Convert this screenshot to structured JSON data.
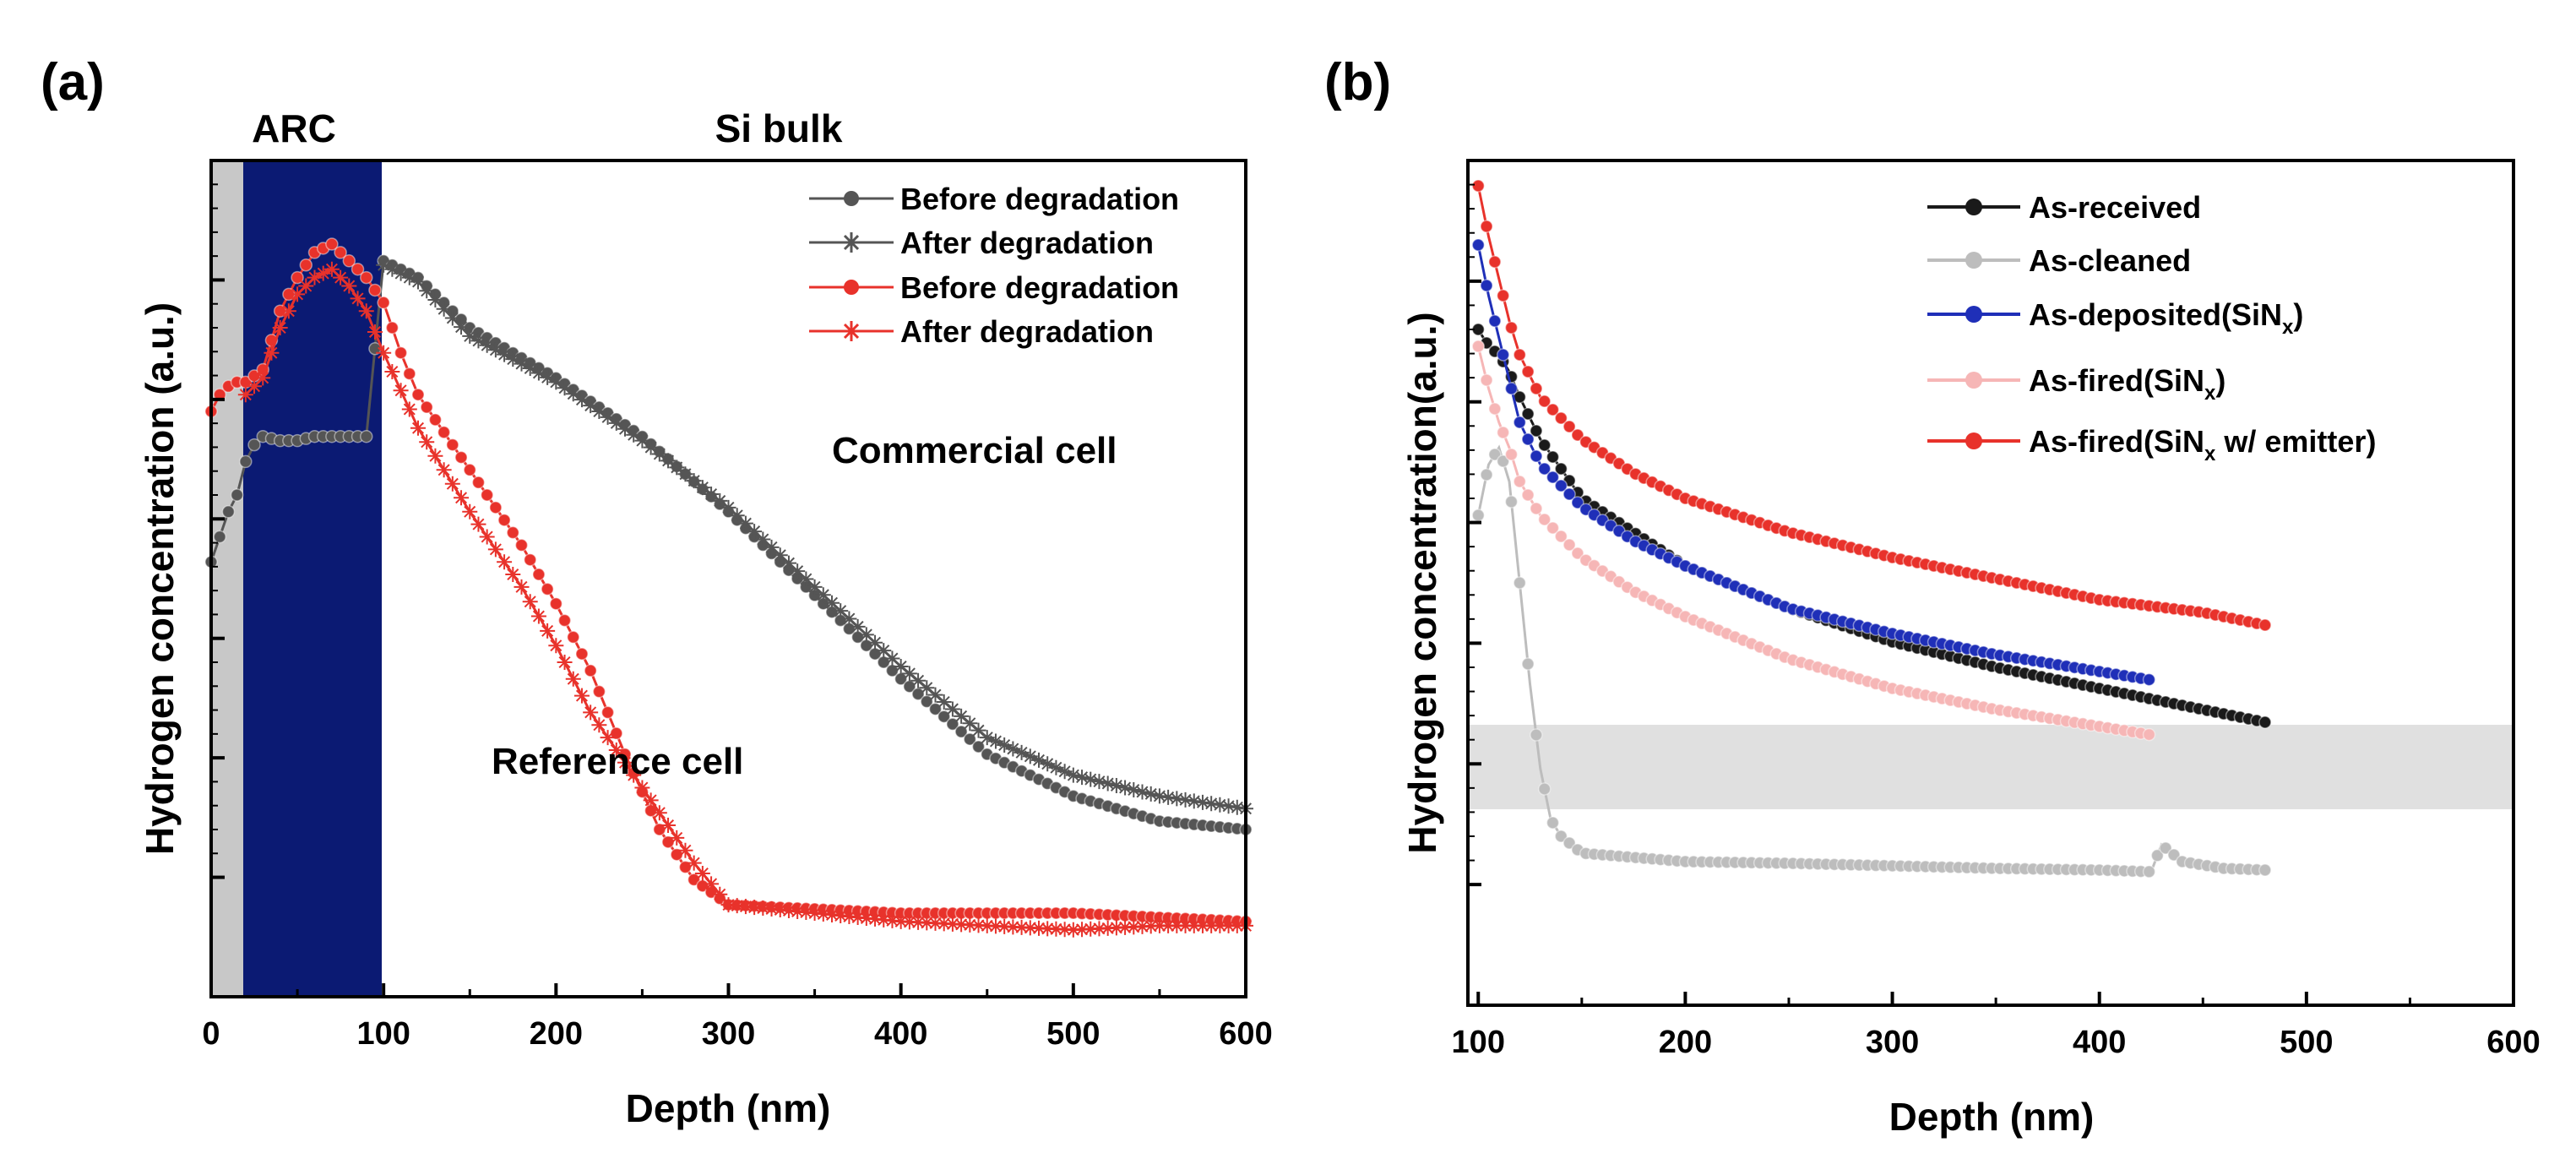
{
  "figure": {
    "panel_a_label": "(a)",
    "panel_b_label": "(b)"
  },
  "colors": {
    "black_series": "#1a1a1a",
    "dark_grey_series": "#555555",
    "red_series": "#e8322b",
    "blue_series": "#1f2fb8",
    "light_grey_series": "#bdbdbd",
    "pink_series": "#f6b6b6",
    "arc_band": "#0b1a73",
    "grey_band": "#c8c8c8",
    "shaded_region": "#e0e0e0"
  },
  "chart_data": [
    {
      "panel": "a",
      "type": "line",
      "title": "",
      "xlabel": "Depth (nm)",
      "ylabel": "Hydrogen concentration (a.u.)",
      "xlim": [
        0,
        600
      ],
      "ylim": [
        0,
        1
      ],
      "x_ticks": [
        0,
        100,
        200,
        300,
        400,
        500,
        600
      ],
      "grid": false,
      "legend_position": "top-right",
      "region_labels": [
        "ARC",
        "Si bulk"
      ],
      "annotations": [
        "Commercial cell",
        "Reference cell"
      ],
      "series": [
        {
          "name": "Before degradation",
          "group": "Commercial cell",
          "marker": "circle",
          "color": "#555555",
          "x": [
            0,
            5,
            10,
            15,
            20,
            25,
            30,
            40,
            50,
            60,
            70,
            80,
            90,
            100,
            110,
            120,
            150,
            200,
            250,
            300,
            350,
            400,
            450,
            500,
            550,
            600
          ],
          "y": [
            0.52,
            0.55,
            0.58,
            0.6,
            0.64,
            0.66,
            0.67,
            0.665,
            0.665,
            0.67,
            0.67,
            0.67,
            0.67,
            0.88,
            0.87,
            0.86,
            0.8,
            0.74,
            0.67,
            0.58,
            0.48,
            0.38,
            0.29,
            0.24,
            0.21,
            0.2
          ]
        },
        {
          "name": "After degradation",
          "group": "Commercial cell",
          "marker": "star",
          "color": "#555555",
          "x": [
            100,
            120,
            150,
            200,
            250,
            300,
            350,
            400,
            450,
            500,
            550,
            600
          ],
          "y": [
            0.875,
            0.855,
            0.79,
            0.735,
            0.665,
            0.585,
            0.49,
            0.395,
            0.31,
            0.265,
            0.24,
            0.225
          ]
        },
        {
          "name": "Before degradation",
          "group": "Reference cell",
          "marker": "circle",
          "color": "#e8322b",
          "x": [
            0,
            5,
            10,
            15,
            20,
            30,
            40,
            50,
            60,
            70,
            80,
            90,
            100,
            110,
            120,
            140,
            160,
            180,
            200,
            220,
            240,
            260,
            280,
            300,
            350,
            400,
            450,
            500,
            550,
            600
          ],
          "y": [
            0.7,
            0.72,
            0.73,
            0.735,
            0.735,
            0.75,
            0.82,
            0.86,
            0.89,
            0.9,
            0.88,
            0.86,
            0.83,
            0.77,
            0.72,
            0.66,
            0.6,
            0.54,
            0.47,
            0.39,
            0.29,
            0.2,
            0.14,
            0.11,
            0.105,
            0.1,
            0.1,
            0.1,
            0.095,
            0.09
          ]
        },
        {
          "name": "After degradation",
          "group": "Reference cell",
          "marker": "star",
          "color": "#e8322b",
          "x": [
            20,
            30,
            40,
            50,
            60,
            70,
            80,
            90,
            100,
            120,
            150,
            180,
            200,
            220,
            250,
            280,
            300,
            350,
            400,
            450,
            500,
            550,
            600
          ],
          "y": [
            0.72,
            0.74,
            0.8,
            0.84,
            0.86,
            0.87,
            0.85,
            0.82,
            0.77,
            0.68,
            0.58,
            0.49,
            0.42,
            0.34,
            0.25,
            0.16,
            0.11,
            0.1,
            0.09,
            0.085,
            0.08,
            0.085,
            0.085
          ]
        }
      ]
    },
    {
      "panel": "b",
      "type": "line",
      "title": "",
      "xlabel": "Depth (nm)",
      "ylabel": "Hydrogen concentration(a.u.)",
      "xlim": [
        95,
        600
      ],
      "ylim": [
        0,
        1
      ],
      "x_ticks": [
        100,
        200,
        300,
        400,
        500,
        600
      ],
      "grid": false,
      "legend_position": "top-right",
      "series": [
        {
          "name": "As-received",
          "marker": "circle",
          "color": "#1a1a1a",
          "x": [
            100,
            105,
            110,
            115,
            120,
            130,
            150,
            175,
            200,
            250,
            300,
            350,
            400,
            450,
            480
          ],
          "y": [
            0.8,
            0.78,
            0.77,
            0.75,
            0.72,
            0.67,
            0.6,
            0.56,
            0.52,
            0.47,
            0.43,
            0.4,
            0.375,
            0.35,
            0.335
          ]
        },
        {
          "name": "As-cleaned",
          "marker": "circle",
          "color": "#bdbdbd",
          "x": [
            100,
            105,
            110,
            115,
            120,
            125,
            130,
            135,
            140,
            150,
            200,
            250,
            300,
            350,
            400,
            425,
            430,
            440,
            460,
            480
          ],
          "y": [
            0.58,
            0.64,
            0.66,
            0.62,
            0.5,
            0.38,
            0.28,
            0.22,
            0.2,
            0.18,
            0.17,
            0.168,
            0.165,
            0.162,
            0.16,
            0.158,
            0.19,
            0.17,
            0.162,
            0.16
          ]
        },
        {
          "name": "As-deposited(SiN_x)",
          "label_parts": [
            "As-deposited(SiN",
            "x",
            ")"
          ],
          "marker": "circle",
          "color": "#1f2fb8",
          "x": [
            100,
            105,
            110,
            115,
            120,
            130,
            150,
            175,
            200,
            250,
            300,
            350,
            400,
            425
          ],
          "y": [
            0.9,
            0.84,
            0.79,
            0.74,
            0.69,
            0.64,
            0.59,
            0.55,
            0.52,
            0.47,
            0.44,
            0.415,
            0.395,
            0.385
          ]
        },
        {
          "name": "As-fired(SiN_x)",
          "label_parts": [
            "As-fired(SiN",
            "x",
            ")"
          ],
          "marker": "circle",
          "color": "#f6b6b6",
          "x": [
            100,
            105,
            110,
            115,
            120,
            130,
            150,
            175,
            200,
            250,
            300,
            350,
            400,
            425
          ],
          "y": [
            0.78,
            0.73,
            0.69,
            0.66,
            0.62,
            0.58,
            0.53,
            0.49,
            0.46,
            0.41,
            0.375,
            0.35,
            0.33,
            0.32
          ]
        },
        {
          "name": "As-fired(SiN_x w/ emitter)",
          "label_parts": [
            "As-fired(SiN",
            "x",
            " w/ emitter)"
          ],
          "marker": "circle",
          "color": "#e8322b",
          "x": [
            100,
            105,
            110,
            115,
            120,
            130,
            150,
            175,
            200,
            250,
            300,
            350,
            400,
            450,
            480
          ],
          "y": [
            0.97,
            0.91,
            0.86,
            0.81,
            0.77,
            0.72,
            0.67,
            0.63,
            0.6,
            0.56,
            0.53,
            0.505,
            0.48,
            0.465,
            0.45
          ]
        }
      ]
    }
  ]
}
